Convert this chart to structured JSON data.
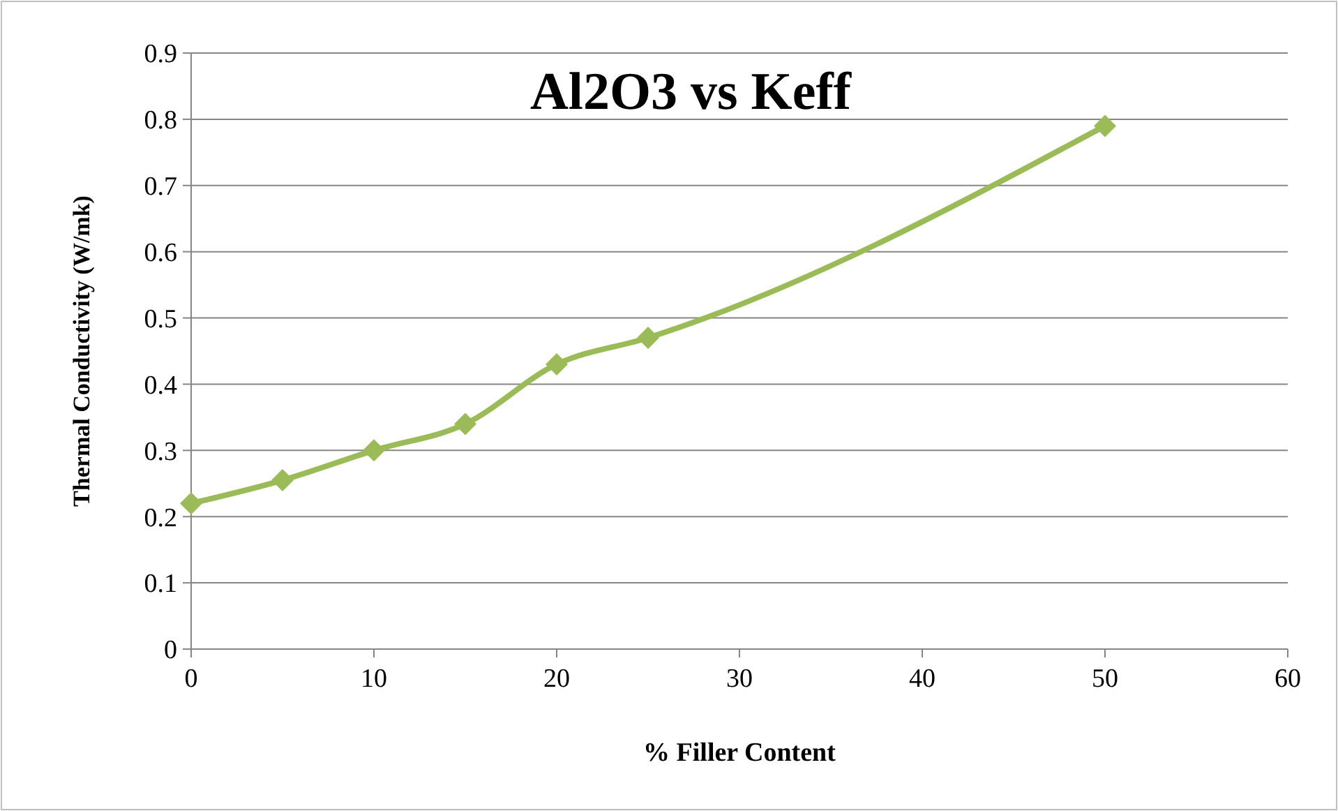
{
  "chart_data": {
    "type": "line",
    "title": "Al2O3 vs Keff",
    "xlabel": "% Filler Content",
    "ylabel": "Thermal Conductivity (W/mk)",
    "x": [
      0,
      5,
      10,
      15,
      20,
      25,
      50
    ],
    "series": [
      {
        "color": "#9bbb59",
        "values": [
          0.22,
          0.255,
          0.3,
          0.34,
          0.43,
          0.47,
          0.79
        ]
      }
    ],
    "xlim": [
      0,
      60
    ],
    "xticks": [
      0,
      10,
      20,
      30,
      40,
      50,
      60
    ],
    "ylim": [
      0,
      0.9
    ],
    "yticks": [
      0,
      0.1,
      0.2,
      0.3,
      0.4,
      0.5,
      0.6,
      0.7,
      0.8,
      0.9
    ],
    "grid": "y",
    "marker": "diamond",
    "line_style": "solid"
  }
}
